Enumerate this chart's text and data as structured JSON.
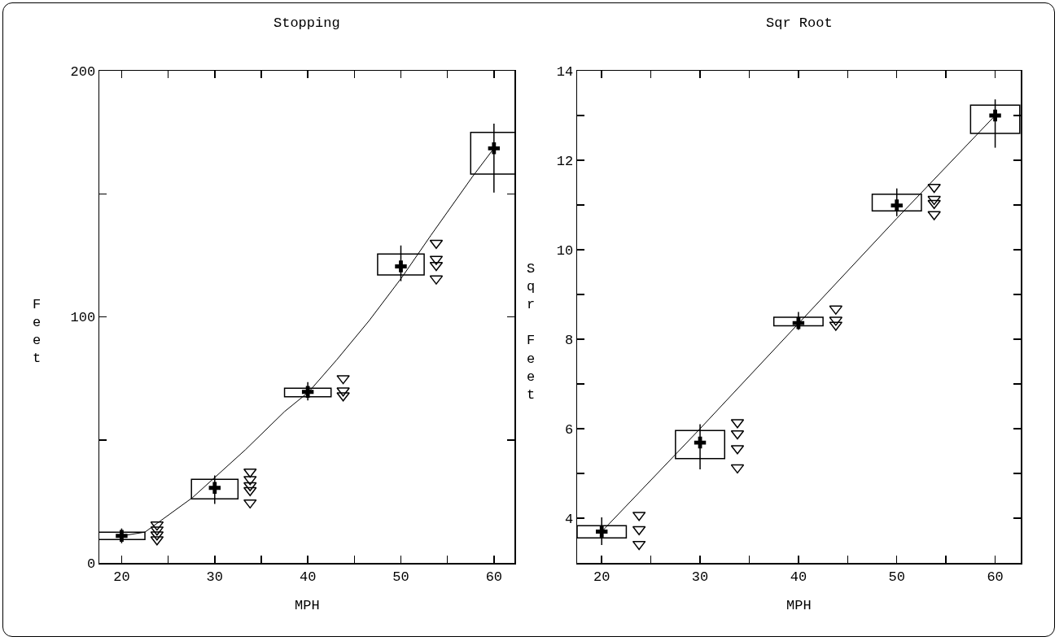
{
  "chart_data": [
    {
      "type": "bar",
      "title": "Stopping",
      "xlabel": "MPH",
      "ylabel": "Feet",
      "xlim": [
        17.6,
        62.2
      ],
      "xticks": [
        20,
        {
          "value": 25,
          "label": null
        },
        30,
        {
          "value": 35,
          "label": null
        },
        40,
        {
          "value": 45,
          "label": null
        },
        50,
        {
          "value": 55,
          "label": null
        },
        60
      ],
      "ylim": [
        0,
        200
      ],
      "yticks": [
        0,
        {
          "value": 50,
          "label": null
        },
        100,
        {
          "value": 150,
          "label": null
        },
        200
      ],
      "grid": false,
      "series": [
        {
          "color": "#000000",
          "x": [
            20,
            30,
            40,
            50,
            60
          ],
          "base": [
            9.5,
            26,
            67.5,
            117,
            158
          ],
          "values": [
            3,
            8,
            3.5,
            8.5,
            17
          ]
        },
        {
          "type": "scatter",
          "marker": "cross",
          "color": "#000000",
          "x": [
            20,
            30,
            40,
            50,
            60
          ],
          "values": [
            11,
            30.5,
            69.5,
            120.5,
            168.5
          ],
          "errors": [
            [
              8,
              14
            ],
            [
              24,
              35.5
            ],
            [
              66,
              73.5
            ],
            [
              114.5,
              129
            ],
            [
              150.5,
              178.5
            ]
          ]
        },
        {
          "type": "scatter",
          "marker": "triangle",
          "color": "#000000",
          "x": [
            23.8,
            23.8,
            23.8,
            23.8,
            33.8,
            33.8,
            33.8,
            33.8,
            33.8,
            43.8,
            43.8,
            43.8,
            53.8,
            53.8,
            53.8,
            53.8
          ],
          "values": [
            15.5,
            13.5,
            11.5,
            9.5,
            37,
            34,
            31.5,
            29.5,
            24.5,
            75,
            70,
            68,
            130,
            123.5,
            121,
            115.5
          ]
        },
        {
          "type": "line",
          "marker": "none",
          "color": "#000000",
          "x": [
            20,
            22.5,
            27.6,
            33.3,
            37.5,
            40.1,
            43.1,
            46.6,
            50.1,
            53.2,
            57.7,
            60
          ],
          "values": [
            11,
            12.5,
            26.5,
            46,
            61.5,
            69.5,
            82.5,
            98.5,
            116,
            133,
            157,
            168.5
          ]
        }
      ]
    },
    {
      "type": "bar",
      "title": "Sqr Root",
      "xlabel": "MPH",
      "ylabel": "Sqr Feet",
      "xlim": [
        17.5,
        62.6
      ],
      "xticks": [
        20,
        {
          "value": 25,
          "label": null
        },
        30,
        {
          "value": 35,
          "label": null
        },
        40,
        {
          "value": 45,
          "label": null
        },
        50,
        {
          "value": 55,
          "label": null
        },
        60
      ],
      "ylim": [
        3,
        14
      ],
      "yticks": [
        4,
        {
          "value": 5,
          "label": null
        },
        6,
        {
          "value": 7,
          "label": null
        },
        8,
        {
          "value": 9,
          "label": null
        },
        10,
        {
          "value": 11,
          "label": null
        },
        12,
        {
          "value": 13,
          "label": null
        },
        14
      ],
      "grid": false,
      "series": [
        {
          "color": "#000000",
          "x": [
            20,
            30,
            40,
            50,
            60
          ],
          "base": [
            3.56,
            5.33,
            8.3,
            10.87,
            12.6
          ],
          "values": [
            0.27,
            0.63,
            0.19,
            0.37,
            0.63
          ]
        },
        {
          "type": "scatter",
          "marker": "cross",
          "color": "#000000",
          "x": [
            20,
            30,
            40,
            50,
            60
          ],
          "values": [
            3.7,
            5.69,
            8.36,
            10.99,
            13
          ],
          "errors": [
            [
              3.4,
              4.02
            ],
            [
              5.09,
              6.1
            ],
            [
              8.21,
              8.61
            ],
            [
              10.75,
              11.37
            ],
            [
              12.28,
              13.36
            ]
          ]
        },
        {
          "type": "scatter",
          "marker": "triangle",
          "color": "#000000",
          "x": [
            23.8,
            23.8,
            23.8,
            33.8,
            33.8,
            33.8,
            33.8,
            43.8,
            43.8,
            43.8,
            53.8,
            53.8,
            53.8,
            53.8
          ],
          "values": [
            4.07,
            3.75,
            3.42,
            6.14,
            5.89,
            5.56,
            5.13,
            8.68,
            8.43,
            8.32,
            11.4,
            11.13,
            11.04,
            10.79
          ]
        },
        {
          "type": "line",
          "marker": "none",
          "color": "#000000",
          "x": [
            20,
            30,
            40,
            50,
            60
          ],
          "values": [
            3.7,
            6,
            8.35,
            10.7,
            13
          ]
        }
      ]
    }
  ]
}
